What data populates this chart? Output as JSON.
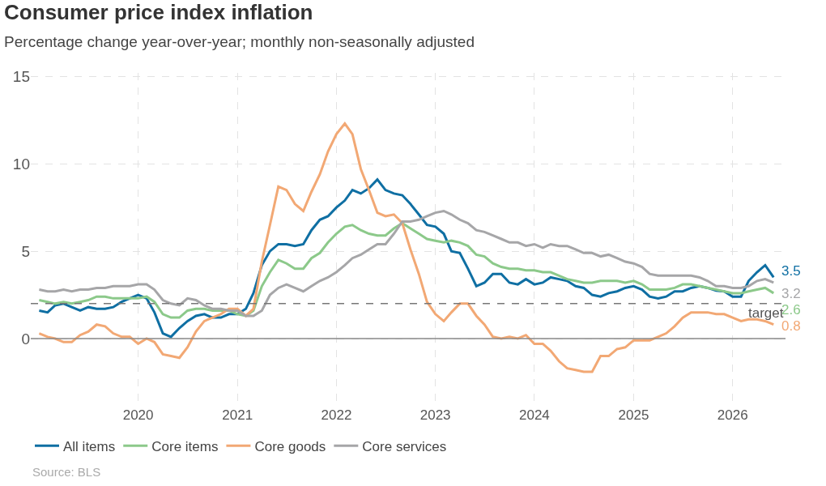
{
  "chart_data": {
    "type": "line",
    "title": "Consumer price index inflation",
    "subtitle": "Percentage change year-over-year; monthly non-seasonally adjusted",
    "x": [
      "2019-01",
      "2019-02",
      "2019-03",
      "2019-04",
      "2019-05",
      "2019-06",
      "2019-07",
      "2019-08",
      "2019-09",
      "2019-10",
      "2019-11",
      "2019-12",
      "2020-01",
      "2020-02",
      "2020-03",
      "2020-04",
      "2020-05",
      "2020-06",
      "2020-07",
      "2020-08",
      "2020-09",
      "2020-10",
      "2020-11",
      "2020-12",
      "2021-01",
      "2021-02",
      "2021-03",
      "2021-04",
      "2021-05",
      "2021-06",
      "2021-07",
      "2021-08",
      "2021-09",
      "2021-10",
      "2021-11",
      "2021-12",
      "2022-01",
      "2022-02",
      "2022-03",
      "2022-04",
      "2022-05",
      "2022-06",
      "2022-07",
      "2022-08",
      "2022-09",
      "2022-10",
      "2022-11",
      "2022-12",
      "2023-01",
      "2023-02",
      "2023-03",
      "2023-04",
      "2023-05",
      "2023-06",
      "2023-07",
      "2023-08",
      "2023-09",
      "2023-10",
      "2023-11",
      "2023-12",
      "2024-01",
      "2024-02",
      "2024-03",
      "2024-04",
      "2024-05",
      "2024-06",
      "2024-07",
      "2024-08",
      "2024-09",
      "2024-10",
      "2024-11",
      "2024-12",
      "2025-01",
      "2025-02",
      "2025-03",
      "2025-04",
      "2025-05",
      "2025-06",
      "2025-07",
      "2025-08",
      "2025-09",
      "2025-10",
      "2025-11",
      "2025-12",
      "2026-01",
      "2026-02",
      "2026-03",
      "2026-04",
      "2026-05",
      "2026-06"
    ],
    "series": [
      {
        "name": "All items",
        "color": "#0f6fa3",
        "values": [
          1.6,
          1.5,
          1.9,
          2.0,
          1.8,
          1.6,
          1.8,
          1.7,
          1.7,
          1.8,
          2.1,
          2.3,
          2.5,
          2.3,
          1.5,
          0.3,
          0.1,
          0.6,
          1.0,
          1.3,
          1.4,
          1.2,
          1.2,
          1.4,
          1.4,
          1.7,
          2.6,
          4.2,
          5.0,
          5.4,
          5.4,
          5.3,
          5.4,
          6.2,
          6.8,
          7.0,
          7.5,
          7.9,
          8.5,
          8.3,
          8.6,
          9.1,
          8.5,
          8.3,
          8.2,
          7.7,
          7.1,
          6.5,
          6.4,
          6.0,
          5.0,
          4.9,
          4.0,
          3.0,
          3.2,
          3.7,
          3.7,
          3.2,
          3.1,
          3.4,
          3.1,
          3.2,
          3.5,
          3.4,
          3.3,
          3.0,
          2.9,
          2.5,
          2.4,
          2.6,
          2.7,
          2.9,
          3.0,
          2.8,
          2.4,
          2.3,
          2.4,
          2.7,
          2.7,
          2.9,
          3.0,
          2.9,
          2.75,
          2.7,
          2.4,
          2.4,
          3.3,
          3.8,
          4.2,
          3.5
        ]
      },
      {
        "name": "Core items",
        "color": "#8cc98a",
        "values": [
          2.2,
          2.1,
          2.0,
          2.1,
          2.0,
          2.1,
          2.2,
          2.4,
          2.4,
          2.3,
          2.3,
          2.3,
          2.3,
          2.4,
          2.1,
          1.4,
          1.2,
          1.2,
          1.6,
          1.7,
          1.7,
          1.6,
          1.6,
          1.6,
          1.4,
          1.3,
          1.6,
          3.0,
          3.8,
          4.5,
          4.3,
          4.0,
          4.0,
          4.6,
          4.9,
          5.5,
          6.0,
          6.4,
          6.5,
          6.2,
          6.0,
          5.9,
          5.9,
          6.3,
          6.6,
          6.3,
          6.0,
          5.7,
          5.6,
          5.5,
          5.6,
          5.5,
          5.3,
          4.8,
          4.7,
          4.3,
          4.1,
          4.0,
          4.0,
          3.9,
          3.9,
          3.8,
          3.8,
          3.6,
          3.4,
          3.3,
          3.2,
          3.2,
          3.3,
          3.3,
          3.3,
          3.2,
          3.3,
          3.1,
          2.8,
          2.8,
          2.8,
          2.9,
          3.1,
          3.1,
          3.0,
          2.9,
          2.8,
          2.7,
          2.6,
          2.6,
          2.7,
          2.8,
          2.9,
          2.6
        ]
      },
      {
        "name": "Core goods",
        "color": "#f2a874",
        "values": [
          0.3,
          0.1,
          0.0,
          -0.2,
          -0.2,
          0.2,
          0.4,
          0.8,
          0.7,
          0.3,
          0.1,
          0.1,
          -0.3,
          0.0,
          -0.2,
          -0.9,
          -1.0,
          -1.1,
          -0.5,
          0.4,
          1.0,
          1.2,
          1.4,
          1.7,
          1.7,
          1.3,
          1.7,
          4.4,
          6.5,
          8.7,
          8.5,
          7.7,
          7.3,
          8.4,
          9.4,
          10.7,
          11.7,
          12.3,
          11.7,
          9.7,
          8.5,
          7.2,
          7.0,
          7.1,
          6.6,
          5.1,
          3.7,
          2.1,
          1.4,
          1.0,
          1.5,
          2.0,
          2.0,
          1.3,
          0.8,
          0.1,
          0.0,
          0.1,
          0.0,
          0.2,
          -0.3,
          -0.3,
          -0.7,
          -1.3,
          -1.7,
          -1.8,
          -1.9,
          -1.9,
          -1.0,
          -1.0,
          -0.6,
          -0.5,
          -0.1,
          -0.1,
          -0.1,
          0.1,
          0.3,
          0.7,
          1.2,
          1.5,
          1.5,
          1.5,
          1.4,
          1.4,
          1.2,
          1.0,
          1.1,
          1.1,
          1.0,
          0.8
        ]
      },
      {
        "name": "Core services",
        "color": "#a6a6a8",
        "values": [
          2.8,
          2.7,
          2.7,
          2.8,
          2.7,
          2.8,
          2.8,
          2.9,
          2.9,
          3.0,
          3.0,
          3.0,
          3.1,
          3.1,
          2.8,
          2.2,
          2.0,
          1.9,
          2.3,
          2.2,
          1.9,
          1.7,
          1.7,
          1.6,
          1.6,
          1.3,
          1.3,
          1.6,
          2.5,
          2.9,
          3.1,
          2.9,
          2.7,
          3.0,
          3.3,
          3.5,
          3.8,
          4.2,
          4.6,
          4.8,
          5.1,
          5.4,
          5.4,
          6.0,
          6.7,
          6.7,
          6.8,
          7.0,
          7.2,
          7.3,
          7.1,
          6.8,
          6.6,
          6.2,
          6.1,
          5.9,
          5.7,
          5.5,
          5.5,
          5.3,
          5.4,
          5.2,
          5.4,
          5.3,
          5.3,
          5.1,
          4.9,
          4.9,
          4.7,
          4.8,
          4.6,
          4.4,
          4.3,
          4.1,
          3.7,
          3.6,
          3.6,
          3.6,
          3.6,
          3.6,
          3.5,
          3.3,
          3.0,
          3.0,
          2.9,
          2.9,
          3.0,
          3.3,
          3.4,
          3.2
        ]
      }
    ],
    "xlim": [
      "2018-12-01",
      "2026-07-15"
    ],
    "xticks": [
      "2020",
      "2021",
      "2022",
      "2023",
      "2024",
      "2025",
      "2026"
    ],
    "ylim": [
      -3.8,
      15.2
    ],
    "yticks": [
      0,
      5,
      10,
      15
    ],
    "ref_lines": [
      {
        "axis": "y",
        "value": 2,
        "label": "target",
        "color": "#777777",
        "line_style": "dashed"
      },
      {
        "axis": "y",
        "value": 0,
        "color": "#888888",
        "line_style": "solid"
      }
    ],
    "annotations": [
      {
        "text": "3.5",
        "x": "2026-06",
        "y": 3.5
      },
      {
        "text": "3.2",
        "x": "2026-06",
        "y": 3.2
      },
      {
        "text": "2.6",
        "x": "2026-06",
        "y": 2.6
      },
      {
        "text": "0.8",
        "x": "2026-06",
        "y": 0.8
      },
      "Source: BLS"
    ],
    "grid": true,
    "legend": "bottom left",
    "marker": "none",
    "line_style": "solid"
  }
}
